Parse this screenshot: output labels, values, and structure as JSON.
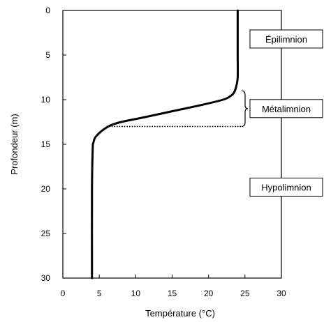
{
  "chart_data": {
    "type": "line",
    "xlabel": "Température (°C)",
    "ylabel": "Profondeur (m)",
    "xlim": [
      0,
      30
    ],
    "ylim": [
      0,
      30
    ],
    "y_inverted": true,
    "x_axis_position": "bottom",
    "xticks": [
      0,
      5,
      10,
      15,
      20,
      25,
      30
    ],
    "yticks": [
      0,
      5,
      10,
      15,
      20,
      25,
      30
    ],
    "grid": false,
    "series": [
      {
        "color": "#000000",
        "x": [
          24.0,
          24.0,
          24.0,
          23.8,
          23.5,
          23.0,
          22.0,
          19.0,
          15.0,
          11.0,
          8.0,
          6.5,
          5.5,
          4.8,
          4.4,
          4.2,
          4.1,
          4.0,
          4.0
        ],
        "y": [
          0.0,
          5.0,
          7.5,
          8.5,
          9.2,
          9.6,
          10.0,
          10.6,
          11.3,
          12.0,
          12.5,
          12.9,
          13.4,
          13.9,
          14.3,
          14.8,
          15.5,
          20.0,
          30.0
        ]
      }
    ],
    "thermocline_line": {
      "y": 13.0,
      "x_start": 6.0,
      "x_end": 24.5,
      "style": "dotted"
    },
    "metalimnion_bracket": {
      "y_start": 9.0,
      "y_end": 13.0
    },
    "zones": [
      {
        "label": "Épilimnion",
        "y": 3.2
      },
      {
        "label": "Métalimnion",
        "y": 11.0
      },
      {
        "label": "Hypolimnion",
        "y": 19.8
      }
    ]
  }
}
